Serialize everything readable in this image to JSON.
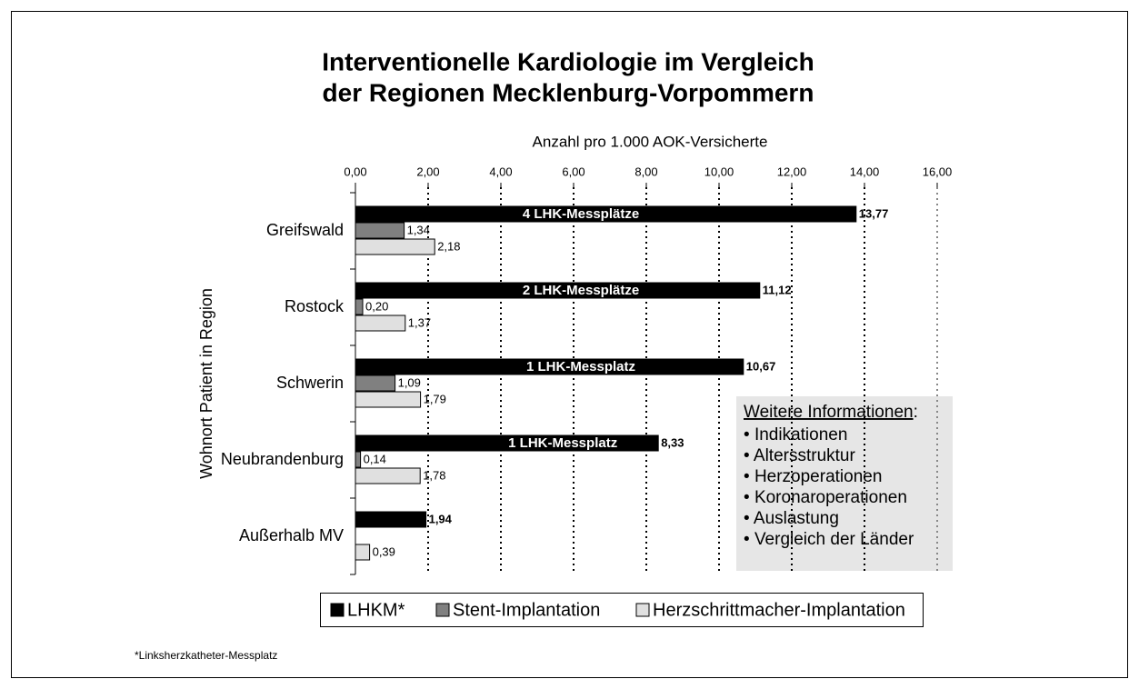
{
  "chart_data": {
    "type": "bar",
    "orientation": "horizontal",
    "title": [
      "Interventionelle Kardiologie im Vergleich",
      "der Regionen Mecklenburg-Vorpommern"
    ],
    "x_label": "Anzahl pro 1.000 AOK-Versicherte",
    "y_label": "Wohnort Patient in Region",
    "categories": [
      "Greifswald",
      "Rostock",
      "Schwerin",
      "Neubrandenburg",
      "Außerhalb MV"
    ],
    "series": [
      {
        "name": "LHKM*",
        "color": "#000000",
        "values": [
          13.77,
          11.12,
          10.67,
          8.33,
          1.94
        ],
        "value_labels": [
          "13,77",
          "11,12",
          "10,67",
          "8,33",
          "1,94"
        ]
      },
      {
        "name": "Stent-Implantation",
        "color": "#808080",
        "values": [
          1.34,
          0.2,
          1.09,
          0.14,
          null
        ],
        "value_labels": [
          "1,34",
          "0,20",
          "1,09",
          "0,14",
          null
        ]
      },
      {
        "name": "Herzschrittmacher-Implantation",
        "color": "#e0e0e0",
        "values": [
          2.18,
          1.37,
          1.79,
          1.78,
          0.39
        ],
        "value_labels": [
          "2,18",
          "1,37",
          "1,79",
          "1,78",
          "0,39"
        ]
      }
    ],
    "annotations": [
      "4 LHK-Messplätze",
      "2 LHK-Messplätze",
      "1 LHK-Messplatz",
      "1 LHK-Messplatz",
      null
    ],
    "xlim": [
      0,
      16
    ],
    "xticks": [
      {
        "value": 0,
        "label": "0,00"
      },
      {
        "value": 2,
        "label": "2,00"
      },
      {
        "value": 4,
        "label": "4,00"
      },
      {
        "value": 6,
        "label": "6,00"
      },
      {
        "value": 8,
        "label": "8,00"
      },
      {
        "value": 10,
        "label": "10,00"
      },
      {
        "value": 12,
        "label": "12,00"
      },
      {
        "value": 14,
        "label": "14,00"
      },
      {
        "value": 16,
        "label": "16,00"
      }
    ],
    "grid": true,
    "info_box": {
      "heading": "Weitere Informationen",
      "items": [
        "Indikationen",
        "Altersstruktur",
        "Herzoperationen",
        "Koronaroperationen",
        "Auslastung",
        "Vergleich der Länder"
      ]
    },
    "footnote": "*Linksherzkatheter-Messplatz"
  }
}
